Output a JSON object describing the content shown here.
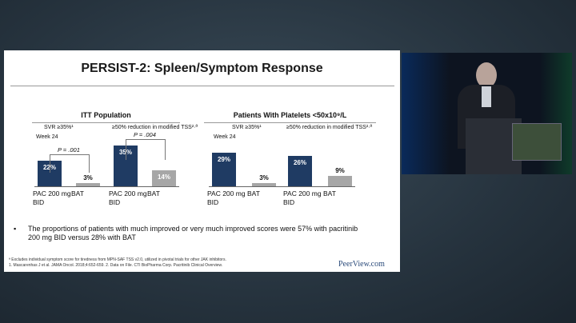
{
  "slide": {
    "title": "PERSIST-2: Spleen/Symptom Response",
    "bullet": "The proportions of patients with much improved or very much improved scores were 57% with pacritinib 200 mg BID versus 28% with BAT",
    "footnotes": [
      "ª Excludes individual symptom score for tiredness from MPN-SAF TSS v2.0, utilized in pivotal trials for other JAK inhibitors.",
      "1. Mascarenhas J et al. JAMA Oncol. 2018;4:652-659. 2. Data on File. CTI BioPharma Corp. Pacritinib Clinical Overview."
    ],
    "brand": "PeerView.com"
  },
  "chart_data": [
    {
      "type": "bar",
      "title": "ITT Population",
      "group_labels": [
        "SVR ≥35%¹",
        "≥50% reduction in modified TSS²·ª"
      ],
      "subtitle": "Week 24",
      "categories": [
        "PAC 200 mg BID",
        "BAT",
        "PAC 200 mg BID",
        "BAT"
      ],
      "values": [
        22,
        3,
        35,
        14
      ],
      "value_labels": [
        "22%",
        "3%",
        "35%",
        "14%"
      ],
      "colors": [
        "#1f3b63",
        "#a6a6a6",
        "#1f3b63",
        "#a6a6a6"
      ],
      "annotations": [
        "P = .001",
        "P = .004"
      ]
    },
    {
      "type": "bar",
      "title": "Patients With Platelets <50x10⁹/L",
      "group_labels": [
        "SVR ≥35%¹",
        "≥50% reduction in modified TSS²·ª"
      ],
      "subtitle": "Week 24",
      "categories": [
        "PAC 200 mg BID",
        "BAT",
        "PAC 200 mg BID",
        "BAT"
      ],
      "values": [
        29,
        3,
        26,
        9
      ],
      "value_labels": [
        "29%",
        "3%",
        "26%",
        "9%"
      ],
      "colors": [
        "#1f3b63",
        "#a6a6a6",
        "#1f3b63",
        "#a6a6a6"
      ]
    }
  ]
}
